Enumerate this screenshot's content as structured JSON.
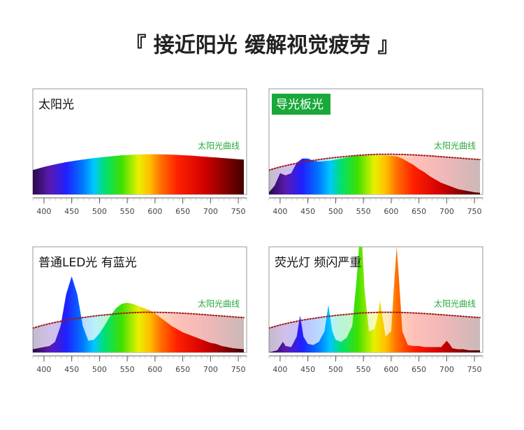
{
  "title": "『 接近阳光 缓解视觉疲劳 』",
  "chart_data": [
    {
      "type": "area",
      "title": "太阳光",
      "annotation": "太阳光曲线",
      "x": [
        380,
        390,
        400,
        410,
        420,
        430,
        440,
        450,
        460,
        470,
        480,
        490,
        500,
        510,
        520,
        530,
        540,
        550,
        560,
        570,
        580,
        590,
        600,
        610,
        620,
        630,
        640,
        650,
        660,
        670,
        680,
        690,
        700,
        710,
        720,
        730,
        740,
        750,
        760
      ],
      "xlim": [
        380,
        765
      ],
      "ylim": [
        0,
        100
      ],
      "xticks": [
        400,
        450,
        500,
        550,
        600,
        650,
        700,
        750
      ],
      "series": [
        {
          "fill": "spectrum",
          "values": [
            23,
            24.5,
            26,
            27.2,
            28.4,
            29.5,
            30.5,
            31.4,
            32.2,
            33,
            33.7,
            34.4,
            35,
            35.5,
            36,
            36.5,
            37,
            37.3,
            37.6,
            37.8,
            38,
            38,
            38,
            37.9,
            37.8,
            37.6,
            37.4,
            37.1,
            36.8,
            36.5,
            36.1,
            35.7,
            35.3,
            34.9,
            34.5,
            34.1,
            33.7,
            33.3,
            33
          ]
        }
      ]
    },
    {
      "type": "area",
      "title": "导光板光",
      "title_bg": "#19a83a",
      "annotation": "太阳光曲线",
      "x": [
        380,
        390,
        400,
        410,
        420,
        430,
        440,
        450,
        460,
        470,
        480,
        490,
        500,
        510,
        520,
        530,
        540,
        550,
        560,
        570,
        580,
        590,
        600,
        610,
        620,
        630,
        640,
        650,
        660,
        670,
        680,
        690,
        700,
        710,
        720,
        730,
        740,
        750,
        760
      ],
      "xlim": [
        380,
        765
      ],
      "ylim": [
        0,
        100
      ],
      "xticks": [
        400,
        450,
        500,
        550,
        600,
        650,
        700,
        750
      ],
      "series": [
        {
          "fill": "pale-spectrum",
          "line": "dotted",
          "color": "#a01818",
          "values": [
            23,
            24.5,
            26,
            27.2,
            28.4,
            29.5,
            30.5,
            31.4,
            32.2,
            33,
            33.7,
            34.4,
            35,
            35.5,
            36,
            36.5,
            37,
            37.3,
            37.6,
            37.8,
            38,
            38,
            38,
            37.9,
            37.8,
            37.6,
            37.4,
            37.1,
            36.8,
            36.5,
            36.1,
            35.7,
            35.3,
            34.9,
            34.5,
            34.1,
            33.7,
            33.3,
            33
          ]
        },
        {
          "fill": "spectrum",
          "values": [
            2,
            8,
            20,
            18,
            20,
            30,
            34,
            34,
            32,
            31,
            31.5,
            32,
            33,
            34,
            35,
            36,
            36.5,
            37,
            37,
            37,
            37,
            37,
            36.5,
            36,
            34,
            31,
            28,
            24,
            21,
            17,
            14,
            11,
            9,
            7,
            5,
            4,
            3,
            2,
            1.5
          ]
        }
      ]
    },
    {
      "type": "area",
      "title": "普通LED光 有蓝光",
      "annotation": "太阳光曲线",
      "x": [
        380,
        390,
        400,
        410,
        420,
        430,
        440,
        450,
        460,
        470,
        480,
        490,
        500,
        510,
        520,
        530,
        540,
        550,
        560,
        570,
        580,
        590,
        600,
        610,
        620,
        630,
        640,
        650,
        660,
        670,
        680,
        690,
        700,
        710,
        720,
        730,
        740,
        750,
        760
      ],
      "xlim": [
        380,
        765
      ],
      "ylim": [
        0,
        100
      ],
      "xticks": [
        400,
        450,
        500,
        550,
        600,
        650,
        700,
        750
      ],
      "series": [
        {
          "fill": "pale-spectrum",
          "line": "dotted",
          "color": "#a01818",
          "values": [
            23,
            24.5,
            26,
            27.2,
            28.4,
            29.5,
            30.5,
            31.4,
            32.2,
            33,
            33.7,
            34.4,
            35,
            35.5,
            36,
            36.5,
            37,
            37.3,
            37.6,
            37.8,
            38,
            38,
            38,
            37.9,
            37.8,
            37.6,
            37.4,
            37.1,
            36.8,
            36.5,
            36.1,
            35.7,
            35.3,
            34.9,
            34.5,
            34.1,
            33.7,
            33.3,
            33
          ]
        },
        {
          "fill": "spectrum",
          "values": [
            3,
            4,
            5,
            6,
            10,
            25,
            55,
            72,
            55,
            25,
            11,
            12,
            18,
            26,
            35,
            42,
            46,
            47,
            46,
            44,
            42,
            40,
            37,
            33,
            29,
            25,
            22,
            19,
            17,
            15,
            13,
            11,
            9,
            8,
            6,
            5,
            4,
            3.5,
            3
          ]
        }
      ]
    },
    {
      "type": "area",
      "title": "荧光灯 频闪严重",
      "annotation": "太阳光曲线",
      "x": [
        380,
        395,
        400,
        405,
        410,
        420,
        430,
        436,
        442,
        450,
        460,
        470,
        480,
        487,
        494,
        500,
        510,
        520,
        530,
        538,
        542,
        545,
        548,
        552,
        560,
        570,
        576,
        580,
        584,
        590,
        600,
        606,
        610,
        614,
        620,
        630,
        640,
        650,
        660,
        670,
        680,
        690,
        695,
        700,
        705,
        710,
        720,
        730,
        740,
        750,
        760
      ],
      "xlim": [
        380,
        765
      ],
      "ylim": [
        0,
        100
      ],
      "xticks": [
        400,
        450,
        500,
        550,
        600,
        650,
        700,
        750
      ],
      "series": [
        {
          "fill": "pale-spectrum",
          "line": "dotted",
          "color": "#a01818",
          "values": [
            23,
            25.3,
            26,
            26.6,
            27.2,
            28.4,
            29.5,
            30.1,
            30.7,
            31.4,
            32.2,
            33,
            33.7,
            34.2,
            34.6,
            35,
            35.5,
            36,
            36.5,
            36.9,
            37.1,
            37.3,
            37.4,
            37.5,
            37.6,
            37.8,
            37.9,
            38,
            38,
            38,
            38,
            38,
            37.9,
            37.9,
            37.8,
            37.6,
            37.4,
            37.1,
            36.8,
            36.5,
            36.1,
            35.7,
            35.5,
            35.3,
            35.1,
            34.9,
            34.5,
            34.1,
            33.7,
            33.3,
            33
          ]
        },
        {
          "fill": "spectrum",
          "values": [
            0,
            2,
            6,
            10,
            6,
            5,
            15,
            35,
            15,
            8,
            7,
            10,
            20,
            45,
            20,
            12,
            10,
            14,
            25,
            70,
            100,
            100,
            100,
            60,
            20,
            22,
            35,
            49,
            35,
            15,
            20,
            70,
            100,
            70,
            20,
            7,
            6,
            6,
            5,
            5,
            5,
            5,
            8,
            11,
            8,
            4,
            3,
            3,
            2,
            2,
            2
          ]
        }
      ]
    }
  ]
}
